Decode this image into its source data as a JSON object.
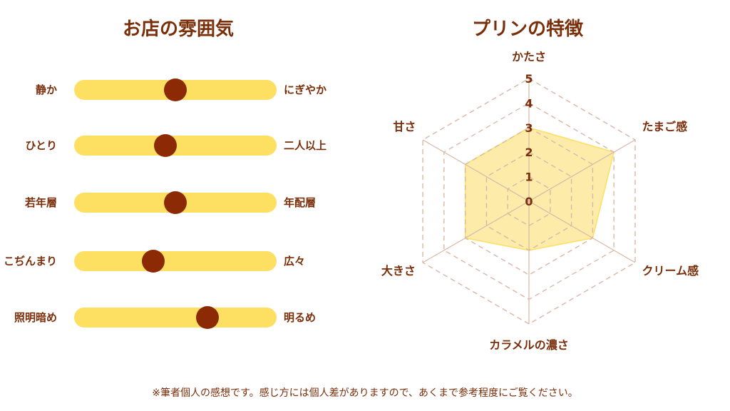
{
  "left_title": "お店の雰囲気",
  "right_title": "プリンの特徴",
  "sliders": [
    {
      "left": "静か",
      "right": "にぎやか",
      "value": 0.5
    },
    {
      "left": "ひとり",
      "right": "二人以上",
      "value": 0.45
    },
    {
      "left": "若年層",
      "right": "年配層",
      "value": 0.5
    },
    {
      "left": "こぢんまり",
      "right": "広々",
      "value": 0.39
    },
    {
      "left": "照明暗め",
      "right": "明るめ",
      "value": 0.66
    }
  ],
  "chart_data": {
    "type": "radar",
    "title": "プリンの特徴",
    "axes": [
      "かたさ",
      "たまご感",
      "クリーム感",
      "カラメルの濃さ",
      "大きさ",
      "甘さ"
    ],
    "values": [
      3,
      4,
      3,
      2,
      3,
      3
    ],
    "range": [
      0,
      5
    ],
    "ticks": [
      "0",
      "1",
      "2",
      "3",
      "4",
      "5"
    ],
    "colors": {
      "fill": "#fde9a0",
      "stroke": "#fde062",
      "grid": "#d9b8a8",
      "text": "#7a2e0a"
    }
  },
  "note": "※筆者個人の感想です。感じ方には個人差がありますので、あくまで参考程度にご覧ください。"
}
